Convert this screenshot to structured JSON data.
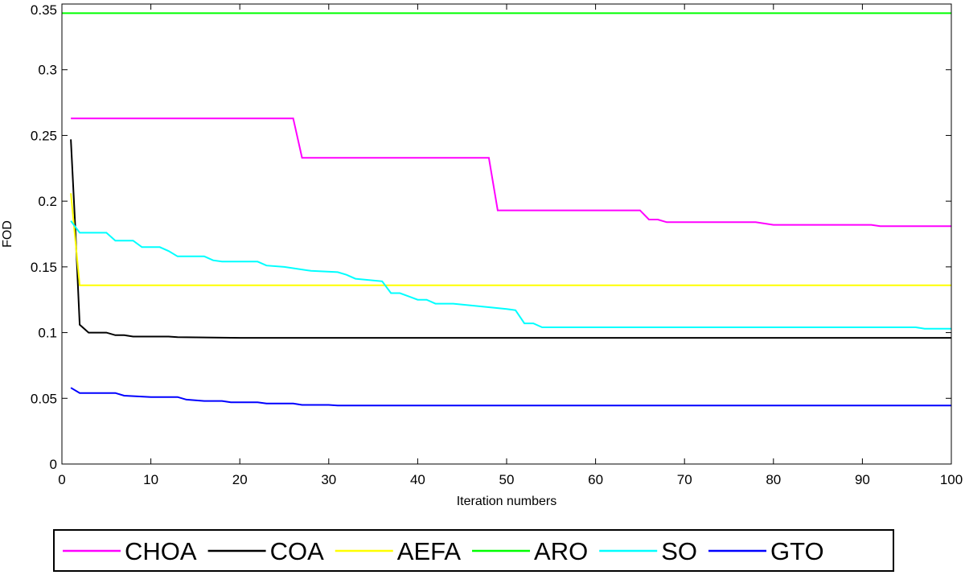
{
  "chart_data": {
    "type": "line",
    "title": "",
    "xlabel": "Iteration numbers",
    "ylabel": "FOD",
    "xlim": [
      0,
      100
    ],
    "ylim": [
      0,
      0.35
    ],
    "xticks": [
      0,
      10,
      20,
      30,
      40,
      50,
      60,
      70,
      80,
      90,
      100
    ],
    "xtick_labels": [
      "0",
      "10",
      "20",
      "30",
      "40",
      "50",
      "60",
      "70",
      "80",
      "90",
      "100"
    ],
    "yticks": [
      0,
      0.05,
      0.1,
      0.15,
      0.2,
      0.25,
      0.3,
      0.35
    ],
    "ytick_labels": [
      "0",
      "0.05",
      "0.1",
      "0.15",
      "0.2",
      "0.25",
      "0.3",
      "0.35"
    ],
    "grid": false,
    "legend_position": "bottom",
    "series": [
      {
        "name": "CHOA",
        "color": "#ff00ff",
        "points": [
          [
            1,
            0.263
          ],
          [
            26,
            0.263
          ],
          [
            27,
            0.233
          ],
          [
            48,
            0.233
          ],
          [
            49,
            0.193
          ],
          [
            65,
            0.193
          ],
          [
            66,
            0.186
          ],
          [
            67,
            0.186
          ],
          [
            68,
            0.184
          ],
          [
            78,
            0.184
          ],
          [
            80,
            0.182
          ],
          [
            91,
            0.182
          ],
          [
            92,
            0.181
          ],
          [
            100,
            0.181
          ]
        ]
      },
      {
        "name": "COA",
        "color": "#000000",
        "points": [
          [
            1,
            0.247
          ],
          [
            1.5,
            0.18
          ],
          [
            2,
            0.106
          ],
          [
            3,
            0.1
          ],
          [
            5,
            0.1
          ],
          [
            6,
            0.098
          ],
          [
            7,
            0.098
          ],
          [
            8,
            0.097
          ],
          [
            12,
            0.097
          ],
          [
            13,
            0.0965
          ],
          [
            20,
            0.096
          ],
          [
            100,
            0.096
          ]
        ]
      },
      {
        "name": "AEFA",
        "color": "#ffff00",
        "points": [
          [
            1,
            0.206
          ],
          [
            2,
            0.136
          ],
          [
            100,
            0.136
          ]
        ]
      },
      {
        "name": "ARO",
        "color": "#00ff00",
        "points": [
          [
            0,
            0.343
          ],
          [
            100,
            0.343
          ]
        ]
      },
      {
        "name": "SO",
        "color": "#00ffff",
        "points": [
          [
            1,
            0.185
          ],
          [
            2,
            0.176
          ],
          [
            5,
            0.176
          ],
          [
            6,
            0.17
          ],
          [
            8,
            0.17
          ],
          [
            9,
            0.165
          ],
          [
            11,
            0.165
          ],
          [
            12,
            0.162
          ],
          [
            13,
            0.158
          ],
          [
            16,
            0.158
          ],
          [
            17,
            0.155
          ],
          [
            18,
            0.154
          ],
          [
            22,
            0.154
          ],
          [
            23,
            0.151
          ],
          [
            25,
            0.15
          ],
          [
            28,
            0.147
          ],
          [
            31,
            0.146
          ],
          [
            32,
            0.144
          ],
          [
            33,
            0.141
          ],
          [
            36,
            0.139
          ],
          [
            37,
            0.13
          ],
          [
            38,
            0.13
          ],
          [
            40,
            0.125
          ],
          [
            41,
            0.125
          ],
          [
            42,
            0.122
          ],
          [
            44,
            0.122
          ],
          [
            50,
            0.118
          ],
          [
            51,
            0.117
          ],
          [
            52,
            0.107
          ],
          [
            53,
            0.107
          ],
          [
            54,
            0.104
          ],
          [
            96,
            0.104
          ],
          [
            97,
            0.103
          ],
          [
            100,
            0.103
          ]
        ]
      },
      {
        "name": "GTO",
        "color": "#0000ff",
        "points": [
          [
            1,
            0.058
          ],
          [
            2,
            0.054
          ],
          [
            6,
            0.054
          ],
          [
            7,
            0.052
          ],
          [
            10,
            0.051
          ],
          [
            13,
            0.051
          ],
          [
            14,
            0.049
          ],
          [
            16,
            0.048
          ],
          [
            18,
            0.048
          ],
          [
            19,
            0.047
          ],
          [
            22,
            0.047
          ],
          [
            23,
            0.046
          ],
          [
            26,
            0.046
          ],
          [
            27,
            0.045
          ],
          [
            30,
            0.045
          ],
          [
            31,
            0.0445
          ],
          [
            100,
            0.0445
          ]
        ]
      }
    ]
  }
}
